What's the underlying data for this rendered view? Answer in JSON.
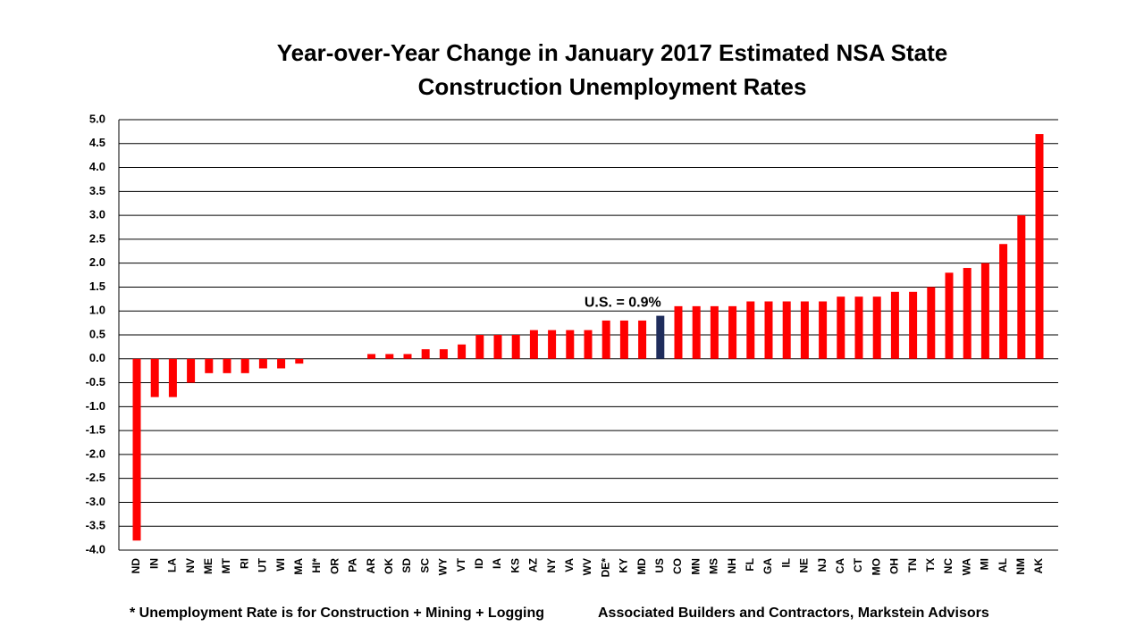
{
  "chart_data": {
    "type": "bar",
    "title": [
      "Year-over-Year Change in January 2017 Estimated NSA State",
      "Construction Unemployment Rates"
    ],
    "categories": [
      "ND",
      "IN",
      "LA",
      "NV",
      "ME",
      "MT",
      "RI",
      "UT",
      "WI",
      "MA",
      "HI*",
      "OR",
      "PA",
      "AR",
      "OK",
      "SD",
      "SC",
      "WY",
      "VT",
      "ID",
      "IA",
      "KS",
      "AZ",
      "NY",
      "VA",
      "WV",
      "DE*",
      "KY",
      "MD",
      "US",
      "CO",
      "MN",
      "MS",
      "NH",
      "FL",
      "GA",
      "IL",
      "NE",
      "NJ",
      "CA",
      "CT",
      "MO",
      "OH",
      "TN",
      "TX",
      "NC",
      "WA",
      "MI",
      "AL",
      "NM",
      "AK"
    ],
    "values": [
      -3.8,
      -0.8,
      -0.8,
      -0.5,
      -0.3,
      -0.3,
      -0.3,
      -0.2,
      -0.2,
      -0.1,
      0,
      0,
      0,
      0.1,
      0.1,
      0.1,
      0.2,
      0.2,
      0.3,
      0.5,
      0.5,
      0.5,
      0.6,
      0.6,
      0.6,
      0.6,
      0.8,
      0.8,
      0.8,
      0.9,
      1.1,
      1.1,
      1.1,
      1.1,
      1.2,
      1.2,
      1.2,
      1.2,
      1.2,
      1.3,
      1.3,
      1.3,
      1.4,
      1.4,
      1.5,
      1.8,
      1.9,
      2.0,
      2.4,
      3.0,
      4.7
    ],
    "colors": [
      "#ff0000",
      "#ff0000",
      "#ff0000",
      "#ff0000",
      "#ff0000",
      "#ff0000",
      "#ff0000",
      "#ff0000",
      "#ff0000",
      "#ff0000",
      "#ff0000",
      "#ff0000",
      "#ff0000",
      "#ff0000",
      "#ff0000",
      "#ff0000",
      "#ff0000",
      "#ff0000",
      "#ff0000",
      "#ff0000",
      "#ff0000",
      "#ff0000",
      "#ff0000",
      "#ff0000",
      "#ff0000",
      "#ff0000",
      "#ff0000",
      "#ff0000",
      "#ff0000",
      "#1f2d5c",
      "#ff0000",
      "#ff0000",
      "#ff0000",
      "#ff0000",
      "#ff0000",
      "#ff0000",
      "#ff0000",
      "#ff0000",
      "#ff0000",
      "#ff0000",
      "#ff0000",
      "#ff0000",
      "#ff0000",
      "#ff0000",
      "#ff0000",
      "#ff0000",
      "#ff0000",
      "#ff0000",
      "#ff0000",
      "#ff0000",
      "#ff0000"
    ],
    "ylim": [
      -4,
      5
    ],
    "yticks": [
      {
        "value": 5,
        "label": "5.0"
      },
      4.5,
      {
        "value": 4,
        "label": "4.0"
      },
      3.5,
      {
        "value": 3,
        "label": "3.0"
      },
      2.5,
      {
        "value": 2,
        "label": "2.0"
      },
      1.5,
      {
        "value": 1,
        "label": "1.0"
      },
      0.5,
      {
        "value": 0,
        "label": "0.0"
      },
      -0.5,
      {
        "value": -1,
        "label": "-1.0"
      },
      -1.5,
      {
        "value": -2,
        "label": "-2.0"
      },
      -2.5,
      {
        "value": -3,
        "label": "-3.0"
      },
      -3.5,
      {
        "value": -4,
        "label": "-4.0"
      }
    ],
    "grid": true,
    "annotation": {
      "text": "U.S. = 0.9%",
      "category_index": 29
    },
    "footnotes": [
      "* Unemployment Rate is for Construction + Mining + Logging",
      "Associated Builders and Contractors, Markstein Advisors"
    ]
  }
}
